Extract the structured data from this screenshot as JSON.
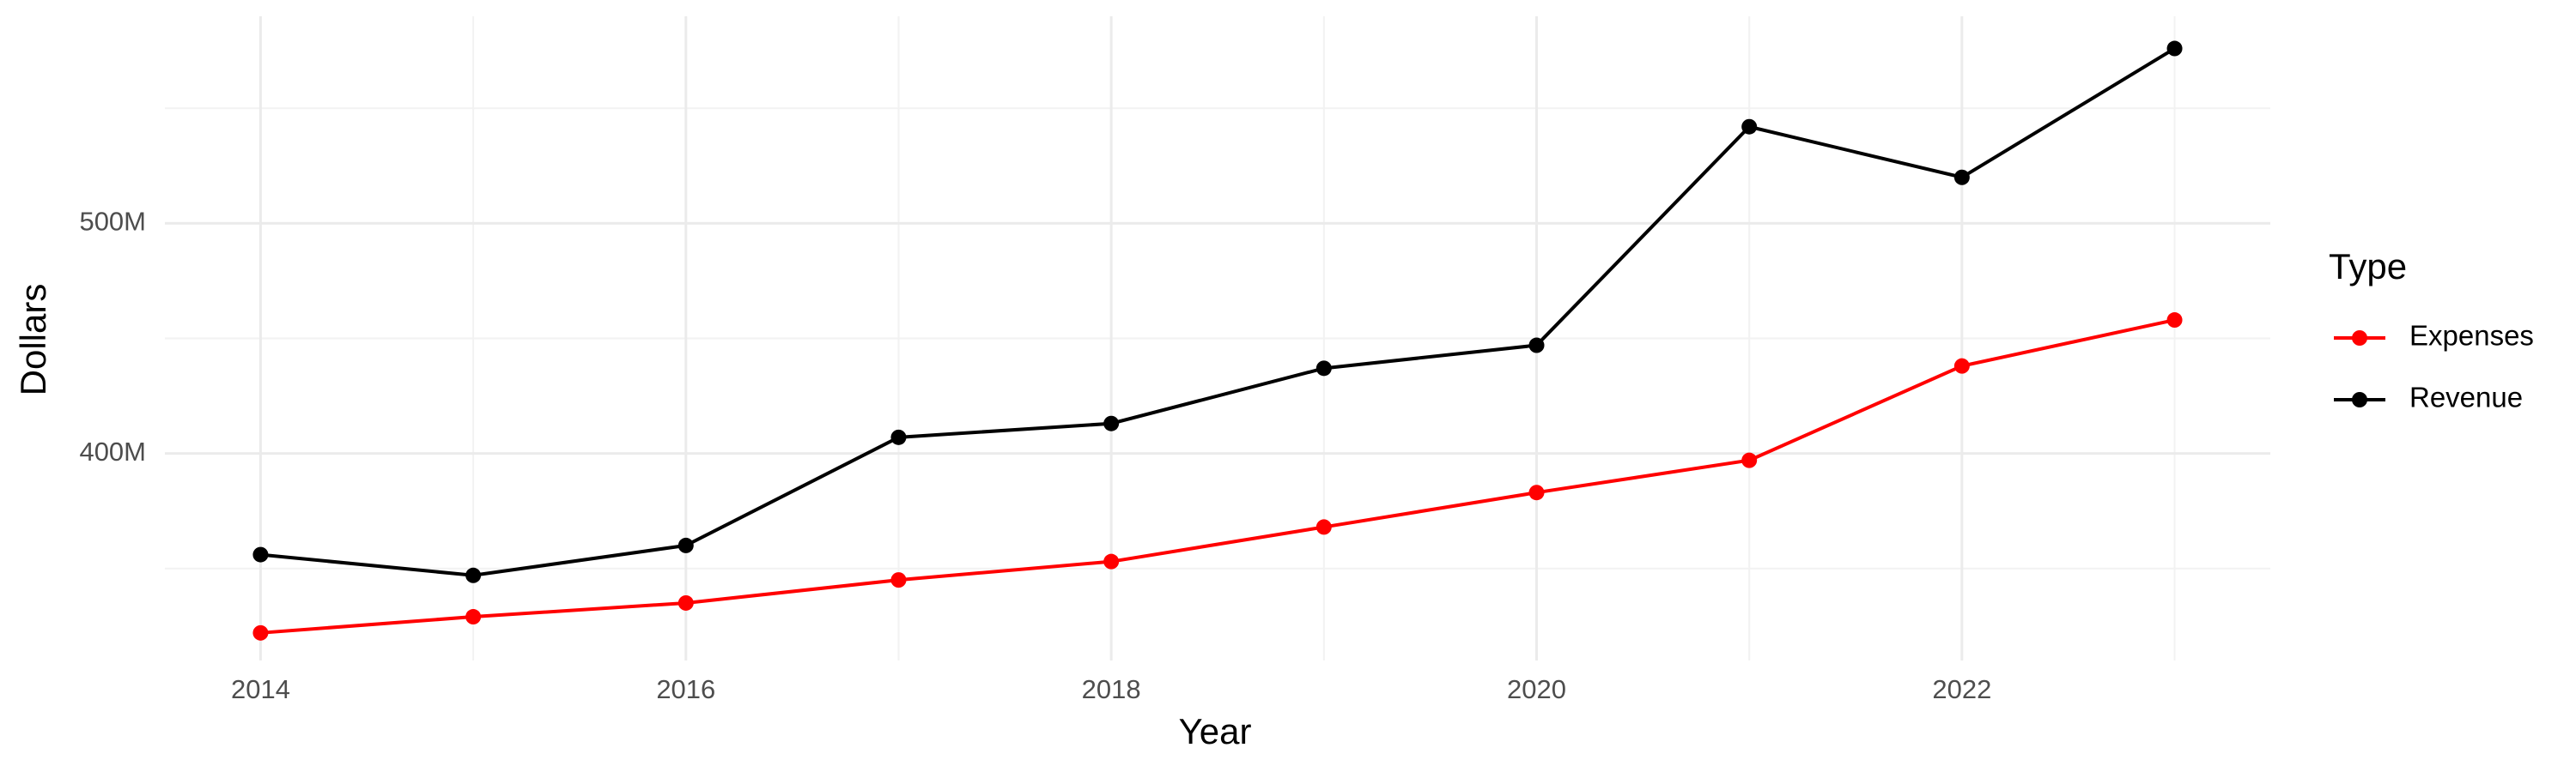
{
  "chart_data": {
    "type": "line",
    "x_label": "Year",
    "y_label": "Dollars",
    "legend_title": "Type",
    "legend_position": "right",
    "grid": true,
    "x": [
      2014,
      2015,
      2016,
      2017,
      2018,
      2019,
      2020,
      2021,
      2022,
      2023
    ],
    "series": [
      {
        "name": "Expenses",
        "color": "#ff0000",
        "values": [
          322000000,
          329000000,
          335000000,
          345000000,
          353000000,
          368000000,
          383000000,
          397000000,
          438000000,
          458000000
        ]
      },
      {
        "name": "Revenue",
        "color": "#000000",
        "values": [
          356000000,
          347000000,
          360000000,
          407000000,
          413000000,
          437000000,
          447000000,
          542000000,
          520000000,
          576000000
        ]
      }
    ],
    "xlim": [
      2013.55,
      2023.45
    ],
    "xticks": [
      2014,
      2016,
      2018,
      2020,
      2022
    ],
    "xminorticks": [
      2015,
      2017,
      2019,
      2021,
      2023
    ],
    "ylim": [
      310000000,
      590000000
    ],
    "yticks": [
      {
        "value": 400000000,
        "label": "400M"
      },
      {
        "value": 500000000,
        "label": "500M"
      }
    ],
    "yminorticks": [
      350000000,
      450000000,
      550000000
    ]
  }
}
